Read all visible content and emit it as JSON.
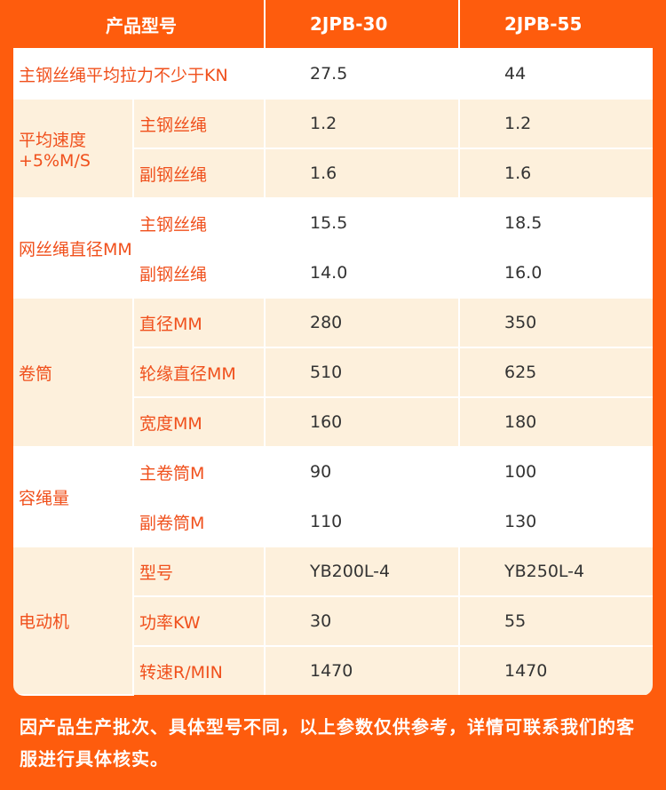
{
  "table": {
    "header": [
      "产品型号",
      "2JPB-30",
      "2JPB-55"
    ],
    "main_row": {
      "label": "主钢丝绳平均拉力不少于KN",
      "values": [
        "27.5",
        "44"
      ]
    },
    "groups": [
      {
        "label": "平均速度+5%M/S",
        "items": [
          {
            "label": "主钢丝绳",
            "values": [
              "1.2",
              "1.2"
            ]
          },
          {
            "label": "副钢丝绳",
            "values": [
              "1.6",
              "1.6"
            ]
          }
        ]
      },
      {
        "label": "网丝绳直径MM",
        "items": [
          {
            "label": "主钢丝绳",
            "values": [
              "15.5",
              "18.5"
            ]
          },
          {
            "label": "副钢丝绳",
            "values": [
              "14.0",
              "16.0"
            ]
          }
        ]
      },
      {
        "label": "卷筒",
        "items": [
          {
            "label": "直径MM",
            "values": [
              "280",
              "350"
            ]
          },
          {
            "label": "轮缘直径MM",
            "values": [
              "510",
              "625"
            ]
          },
          {
            "label": "宽度MM",
            "values": [
              "160",
              "180"
            ]
          }
        ]
      },
      {
        "label": "容绳量",
        "items": [
          {
            "label": "主卷筒M",
            "values": [
              "90",
              "100"
            ]
          },
          {
            "label": "副卷筒M",
            "values": [
              "110",
              "130"
            ]
          }
        ]
      },
      {
        "label": "电动机",
        "items": [
          {
            "label": "型号",
            "values": [
              "YB200L-4",
              "YB250L-4"
            ]
          },
          {
            "label": "功率KW",
            "values": [
              "30",
              "55"
            ]
          },
          {
            "label": "转速R/MIN",
            "values": [
              "1470",
              "1470"
            ]
          }
        ]
      }
    ]
  },
  "note": "因产品生产批次、具体型号不同，以上参数仅供参考，详情可联系我们的客服进行具体核实。"
}
